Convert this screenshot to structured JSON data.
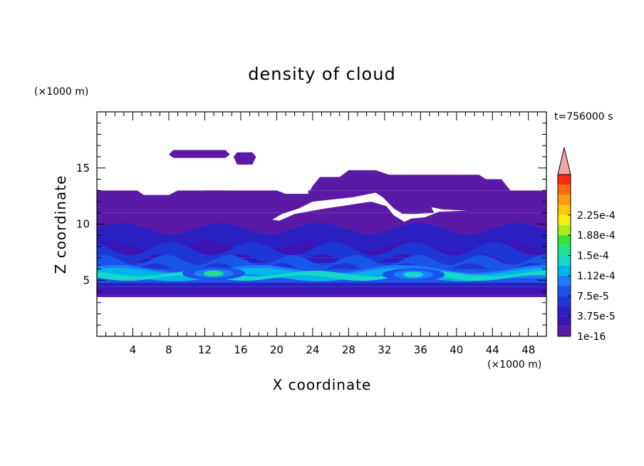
{
  "chart_data": {
    "type": "heatmap",
    "title": "density of cloud",
    "xlabel": "X coordinate",
    "ylabel": "Z coordinate",
    "x_unit": "(×1000 m)",
    "y_unit": "(×1000 m)",
    "time_label": "t=756000 s",
    "xlim": [
      0,
      50
    ],
    "ylim": [
      0,
      20
    ],
    "x_ticks": [
      4,
      8,
      12,
      16,
      20,
      24,
      28,
      32,
      36,
      40,
      44,
      48
    ],
    "y_ticks": [
      5,
      10,
      15
    ],
    "colorbar": {
      "colors": [
        "#5a1aa6",
        "#3c14b4",
        "#2a20c2",
        "#1f36d6",
        "#1a55ea",
        "#1f7cff",
        "#00b6e8",
        "#15d8c8",
        "#1fe08e",
        "#35e23a",
        "#a8ec1e",
        "#f4f00e",
        "#ffc60a",
        "#ff9c10",
        "#ff6a10",
        "#ff2810"
      ],
      "extend_color": "#f4a4a8",
      "tick_labels": [
        "1e-16",
        "3.75e-5",
        "7.5e-5",
        "1.12e-4",
        "1.5e-4",
        "1.88e-4",
        "2.25e-4"
      ],
      "tick_values": [
        0,
        3.75e-05,
        7.5e-05,
        0.000112,
        0.00015,
        0.000188,
        0.000225
      ],
      "levels_per_label": 2
    },
    "profile": {
      "z": [
        3.6,
        4.0,
        4.4,
        4.8,
        5.2,
        5.6,
        6.0,
        6.5,
        7.0,
        8.0,
        9.0,
        10.0,
        11.0,
        12.0,
        13.0
      ],
      "density": [
        1e-05,
        2.5e-05,
        4.5e-05,
        7.5e-05,
        0.000105,
        9e-05,
        6e-05,
        3.8e-05,
        2.8e-05,
        2.2e-05,
        1.8e-05,
        1.4e-05,
        9e-06,
        4e-06,
        2e-06
      ]
    },
    "hotspots": [
      {
        "x": 13.0,
        "z": 5.6,
        "density": 0.00015
      },
      {
        "x": 35.2,
        "z": 5.5,
        "density": 0.000145
      }
    ],
    "cloud_top_km": 13.0,
    "cloud_base_km": 3.5
  }
}
